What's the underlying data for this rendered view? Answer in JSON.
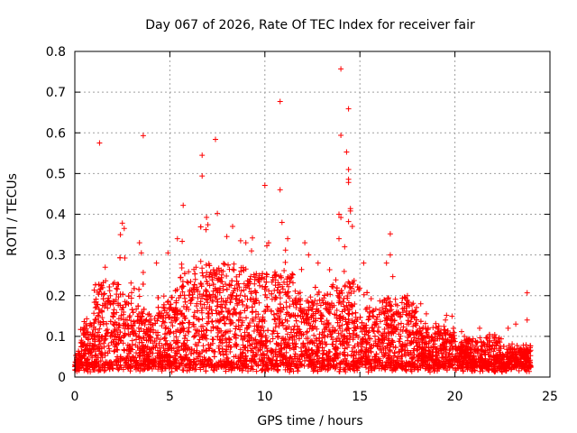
{
  "chart_data": {
    "type": "scatter",
    "title": "Day 067 of 2026, Rate Of TEC Index for receiver fair",
    "xlabel": "GPS time / hours",
    "ylabel": "ROTI / TECUs",
    "xlim": [
      0,
      25
    ],
    "ylim": [
      0,
      0.8
    ],
    "xticks": [
      0,
      5,
      10,
      15,
      20,
      25
    ],
    "yticks": [
      0,
      0.1,
      0.2,
      0.3,
      0.4,
      0.5,
      0.6,
      0.7,
      0.8
    ],
    "xtick_labels": [
      "0",
      "5",
      "10",
      "15",
      "20",
      "25"
    ],
    "ytick_labels": [
      "0",
      "0.1",
      "0.2",
      "0.3",
      "0.4",
      "0.5",
      "0.6",
      "0.7",
      "0.8"
    ],
    "grid": true,
    "marker": "+",
    "color": "#ff0000",
    "series": [
      {
        "name": "ROTI",
        "points": [
          [
            1.3,
            0.575
          ],
          [
            3.6,
            0.593
          ],
          [
            7.4,
            0.584
          ],
          [
            6.7,
            0.545
          ],
          [
            6.7,
            0.494
          ],
          [
            5.7,
            0.422
          ],
          [
            7.5,
            0.402
          ],
          [
            10.8,
            0.677
          ],
          [
            10.0,
            0.471
          ],
          [
            10.8,
            0.46
          ],
          [
            14.0,
            0.757
          ],
          [
            14.4,
            0.659
          ],
          [
            14.0,
            0.594
          ],
          [
            14.3,
            0.553
          ],
          [
            14.4,
            0.51
          ],
          [
            14.4,
            0.486
          ],
          [
            14.4,
            0.478
          ],
          [
            14.5,
            0.414
          ],
          [
            14.5,
            0.408
          ],
          [
            13.9,
            0.4
          ],
          [
            14.0,
            0.392
          ],
          [
            14.4,
            0.382
          ],
          [
            14.6,
            0.37
          ],
          [
            10.9,
            0.38
          ],
          [
            16.6,
            0.352
          ],
          [
            2.5,
            0.378
          ],
          [
            2.6,
            0.365
          ],
          [
            2.4,
            0.35
          ],
          [
            6.9,
            0.362
          ],
          [
            8.3,
            0.37
          ],
          [
            3.4,
            0.33
          ],
          [
            3.5,
            0.305
          ],
          [
            3.6,
            0.257
          ],
          [
            4.9,
            0.305
          ],
          [
            5.4,
            0.34
          ],
          [
            8.0,
            0.345
          ],
          [
            9.0,
            0.33
          ],
          [
            10.2,
            0.33
          ],
          [
            11.2,
            0.34
          ],
          [
            12.1,
            0.33
          ],
          [
            13.9,
            0.34
          ],
          [
            14.2,
            0.32
          ],
          [
            15.2,
            0.28
          ],
          [
            16.6,
            0.3
          ],
          [
            16.4,
            0.28
          ],
          [
            22.0,
            0.1
          ],
          [
            21.3,
            0.12
          ],
          [
            23.8,
            0.207
          ],
          [
            23.8,
            0.14
          ],
          [
            23.2,
            0.13
          ],
          [
            20.5,
            0.1
          ],
          [
            22.8,
            0.12
          ],
          [
            19.5,
            0.14
          ],
          [
            18.2,
            0.18
          ],
          [
            17.5,
            0.2
          ],
          [
            12.3,
            0.3
          ],
          [
            12.8,
            0.28
          ],
          [
            9.3,
            0.31
          ],
          [
            4.3,
            0.28
          ],
          [
            1.6,
            0.27
          ]
        ]
      }
    ]
  }
}
